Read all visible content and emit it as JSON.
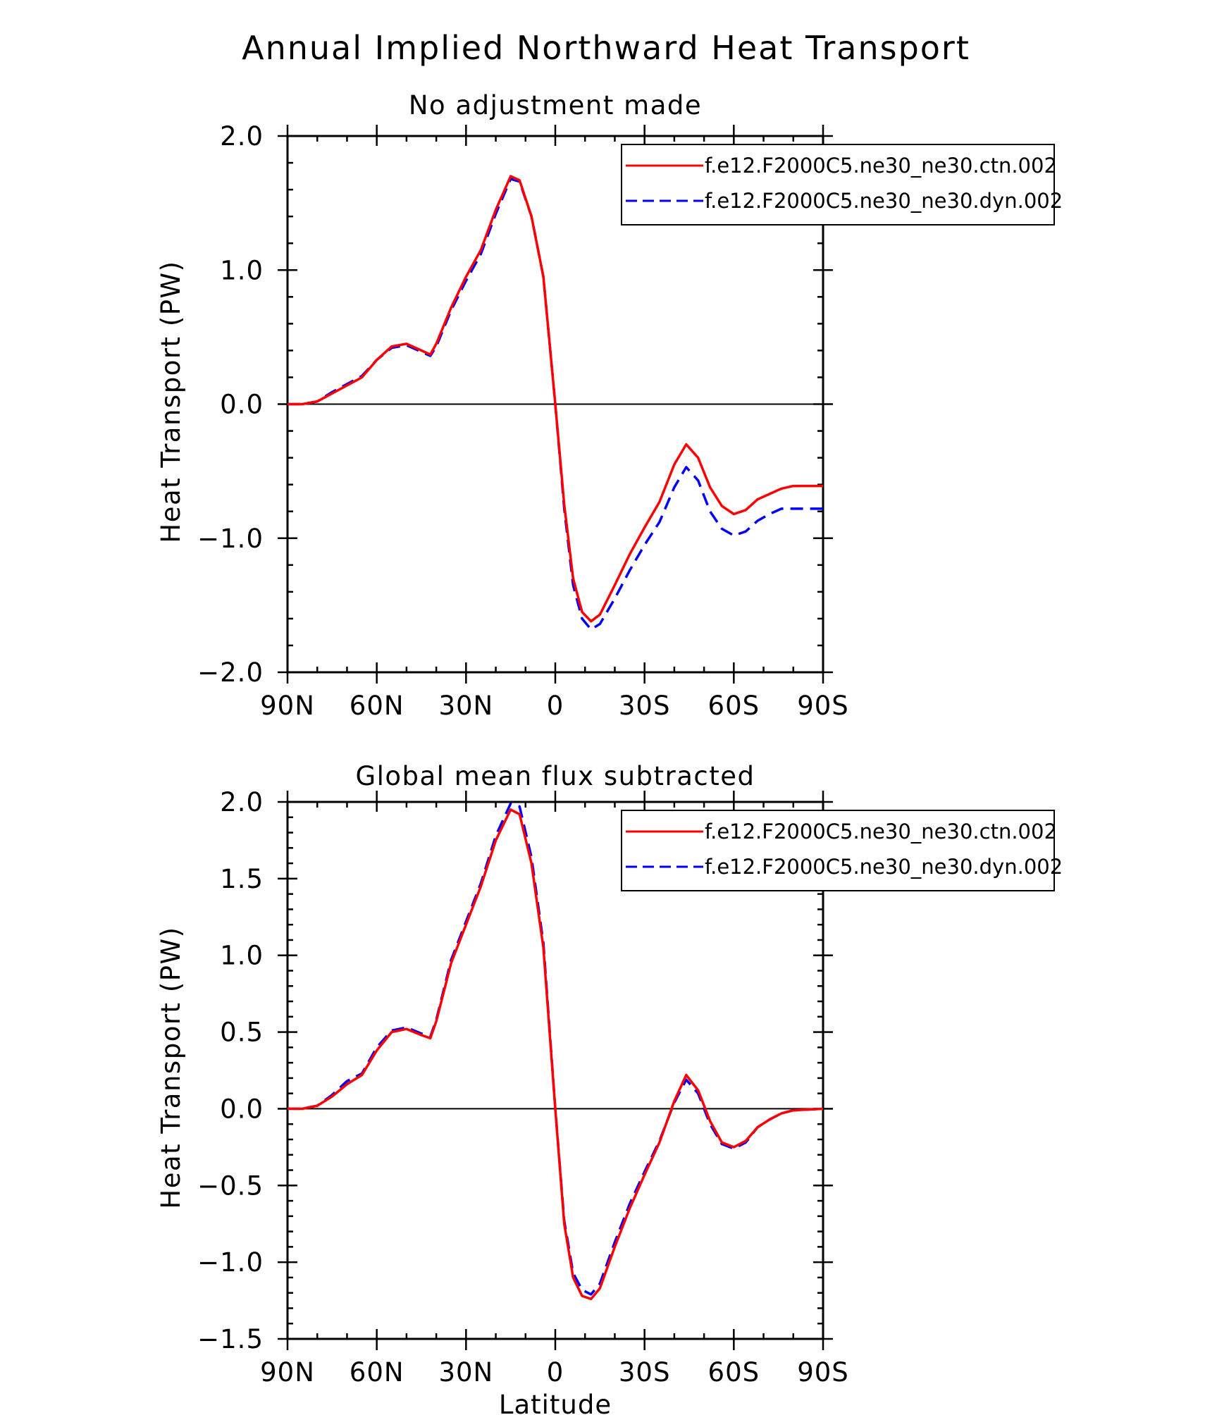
{
  "figure": {
    "title": "Annual Implied Northward Heat Transport",
    "xlabel": "Latitude"
  },
  "colors": {
    "ctn": "#ff0000",
    "dyn": "#0000ff",
    "axis": "#000000"
  },
  "chart_data": [
    {
      "type": "line",
      "subtitle": "No adjustment made",
      "ylabel": "Heat Transport (PW)",
      "xlim": [
        90,
        -90
      ],
      "ylim": [
        -2.0,
        2.0
      ],
      "x_ticks": [
        90,
        60,
        30,
        0,
        -30,
        -60,
        -90
      ],
      "x_tick_labels": [
        "90N",
        "60N",
        "30N",
        "0",
        "30S",
        "60S",
        "90S"
      ],
      "y_ticks": [
        -2.0,
        -1.0,
        0.0,
        1.0,
        2.0
      ],
      "y_tick_labels": [
        "−2.0",
        "−1.0",
        "0.0",
        "1.0",
        "2.0"
      ],
      "zero_line": true,
      "legend": "top-right",
      "series": [
        {
          "name": "f.e12.F2000C5.ne30_ne30.ctn.002",
          "style": "solid",
          "points": [
            [
              90,
              0.0
            ],
            [
              85,
              0.0
            ],
            [
              80,
              0.02
            ],
            [
              75,
              0.08
            ],
            [
              70,
              0.14
            ],
            [
              65,
              0.2
            ],
            [
              60,
              0.33
            ],
            [
              55,
              0.43
            ],
            [
              50,
              0.45
            ],
            [
              45,
              0.4
            ],
            [
              42,
              0.37
            ],
            [
              40,
              0.45
            ],
            [
              35,
              0.72
            ],
            [
              30,
              0.95
            ],
            [
              25,
              1.15
            ],
            [
              20,
              1.45
            ],
            [
              15,
              1.7
            ],
            [
              12,
              1.67
            ],
            [
              8,
              1.4
            ],
            [
              4,
              0.95
            ],
            [
              0,
              0.0
            ],
            [
              -3,
              -0.75
            ],
            [
              -6,
              -1.3
            ],
            [
              -9,
              -1.55
            ],
            [
              -12,
              -1.62
            ],
            [
              -15,
              -1.57
            ],
            [
              -20,
              -1.35
            ],
            [
              -25,
              -1.12
            ],
            [
              -30,
              -0.92
            ],
            [
              -35,
              -0.73
            ],
            [
              -40,
              -0.45
            ],
            [
              -44,
              -0.3
            ],
            [
              -48,
              -0.4
            ],
            [
              -52,
              -0.62
            ],
            [
              -56,
              -0.76
            ],
            [
              -60,
              -0.82
            ],
            [
              -64,
              -0.79
            ],
            [
              -68,
              -0.71
            ],
            [
              -72,
              -0.67
            ],
            [
              -76,
              -0.63
            ],
            [
              -80,
              -0.61
            ],
            [
              -90,
              -0.61
            ]
          ]
        },
        {
          "name": "f.e12.F2000C5.ne30_ne30.dyn.002",
          "style": "dashed",
          "points": [
            [
              90,
              0.0
            ],
            [
              85,
              0.0
            ],
            [
              80,
              0.02
            ],
            [
              75,
              0.09
            ],
            [
              70,
              0.15
            ],
            [
              65,
              0.21
            ],
            [
              60,
              0.33
            ],
            [
              55,
              0.42
            ],
            [
              50,
              0.44
            ],
            [
              45,
              0.39
            ],
            [
              42,
              0.36
            ],
            [
              40,
              0.43
            ],
            [
              35,
              0.7
            ],
            [
              30,
              0.92
            ],
            [
              25,
              1.12
            ],
            [
              20,
              1.42
            ],
            [
              15,
              1.68
            ],
            [
              12,
              1.66
            ],
            [
              8,
              1.4
            ],
            [
              4,
              0.95
            ],
            [
              0,
              0.0
            ],
            [
              -3,
              -0.78
            ],
            [
              -6,
              -1.35
            ],
            [
              -9,
              -1.6
            ],
            [
              -12,
              -1.68
            ],
            [
              -15,
              -1.64
            ],
            [
              -20,
              -1.45
            ],
            [
              -25,
              -1.24
            ],
            [
              -30,
              -1.05
            ],
            [
              -35,
              -0.88
            ],
            [
              -40,
              -0.62
            ],
            [
              -44,
              -0.47
            ],
            [
              -48,
              -0.57
            ],
            [
              -52,
              -0.8
            ],
            [
              -56,
              -0.93
            ],
            [
              -60,
              -0.98
            ],
            [
              -64,
              -0.95
            ],
            [
              -68,
              -0.87
            ],
            [
              -72,
              -0.82
            ],
            [
              -76,
              -0.78
            ],
            [
              -80,
              -0.78
            ],
            [
              -90,
              -0.78
            ]
          ]
        }
      ]
    },
    {
      "type": "line",
      "subtitle": "Global mean flux subtracted",
      "ylabel": "Heat Transport (PW)",
      "xlabel": "Latitude",
      "xlim": [
        90,
        -90
      ],
      "ylim": [
        -1.5,
        2.0
      ],
      "x_ticks": [
        90,
        60,
        30,
        0,
        -30,
        -60,
        -90
      ],
      "x_tick_labels": [
        "90N",
        "60N",
        "30N",
        "0",
        "30S",
        "60S",
        "90S"
      ],
      "y_ticks": [
        -1.5,
        -1.0,
        -0.5,
        0.0,
        0.5,
        1.0,
        1.5,
        2.0
      ],
      "y_tick_labels": [
        "−1.5",
        "−1.0",
        "−0.5",
        "0.0",
        "0.5",
        "1.0",
        "1.5",
        "2.0"
      ],
      "zero_line": true,
      "legend": "top-right",
      "series": [
        {
          "name": "f.e12.F2000C5.ne30_ne30.ctn.002",
          "style": "solid",
          "points": [
            [
              90,
              0.0
            ],
            [
              85,
              0.0
            ],
            [
              80,
              0.02
            ],
            [
              75,
              0.08
            ],
            [
              70,
              0.16
            ],
            [
              65,
              0.22
            ],
            [
              60,
              0.38
            ],
            [
              55,
              0.5
            ],
            [
              50,
              0.52
            ],
            [
              45,
              0.48
            ],
            [
              42,
              0.46
            ],
            [
              40,
              0.57
            ],
            [
              35,
              0.95
            ],
            [
              30,
              1.2
            ],
            [
              25,
              1.45
            ],
            [
              20,
              1.75
            ],
            [
              15,
              1.95
            ],
            [
              12,
              1.92
            ],
            [
              8,
              1.6
            ],
            [
              4,
              1.05
            ],
            [
              0,
              0.0
            ],
            [
              -3,
              -0.75
            ],
            [
              -6,
              -1.1
            ],
            [
              -9,
              -1.22
            ],
            [
              -12,
              -1.24
            ],
            [
              -15,
              -1.17
            ],
            [
              -20,
              -0.9
            ],
            [
              -25,
              -0.65
            ],
            [
              -30,
              -0.43
            ],
            [
              -35,
              -0.22
            ],
            [
              -40,
              0.05
            ],
            [
              -44,
              0.22
            ],
            [
              -48,
              0.12
            ],
            [
              -52,
              -0.08
            ],
            [
              -56,
              -0.22
            ],
            [
              -60,
              -0.25
            ],
            [
              -64,
              -0.21
            ],
            [
              -68,
              -0.12
            ],
            [
              -72,
              -0.07
            ],
            [
              -76,
              -0.03
            ],
            [
              -80,
              -0.01
            ],
            [
              -90,
              0.0
            ]
          ]
        },
        {
          "name": "f.e12.F2000C5.ne30_ne30.dyn.002",
          "style": "dashed",
          "points": [
            [
              90,
              0.0
            ],
            [
              85,
              0.0
            ],
            [
              80,
              0.02
            ],
            [
              75,
              0.09
            ],
            [
              70,
              0.18
            ],
            [
              65,
              0.23
            ],
            [
              60,
              0.4
            ],
            [
              55,
              0.51
            ],
            [
              50,
              0.53
            ],
            [
              45,
              0.49
            ],
            [
              42,
              0.47
            ],
            [
              40,
              0.58
            ],
            [
              35,
              0.97
            ],
            [
              30,
              1.22
            ],
            [
              25,
              1.47
            ],
            [
              20,
              1.78
            ],
            [
              15,
              1.99
            ],
            [
              12,
              1.97
            ],
            [
              8,
              1.64
            ],
            [
              4,
              1.08
            ],
            [
              0,
              0.0
            ],
            [
              -3,
              -0.73
            ],
            [
              -6,
              -1.07
            ],
            [
              -9,
              -1.18
            ],
            [
              -12,
              -1.21
            ],
            [
              -15,
              -1.14
            ],
            [
              -20,
              -0.87
            ],
            [
              -25,
              -0.62
            ],
            [
              -30,
              -0.41
            ],
            [
              -35,
              -0.21
            ],
            [
              -40,
              0.04
            ],
            [
              -44,
              0.19
            ],
            [
              -48,
              0.1
            ],
            [
              -52,
              -0.1
            ],
            [
              -56,
              -0.23
            ],
            [
              -60,
              -0.26
            ],
            [
              -64,
              -0.22
            ],
            [
              -68,
              -0.12
            ],
            [
              -72,
              -0.07
            ],
            [
              -76,
              -0.03
            ],
            [
              -80,
              -0.01
            ],
            [
              -90,
              0.0
            ]
          ]
        }
      ]
    }
  ]
}
